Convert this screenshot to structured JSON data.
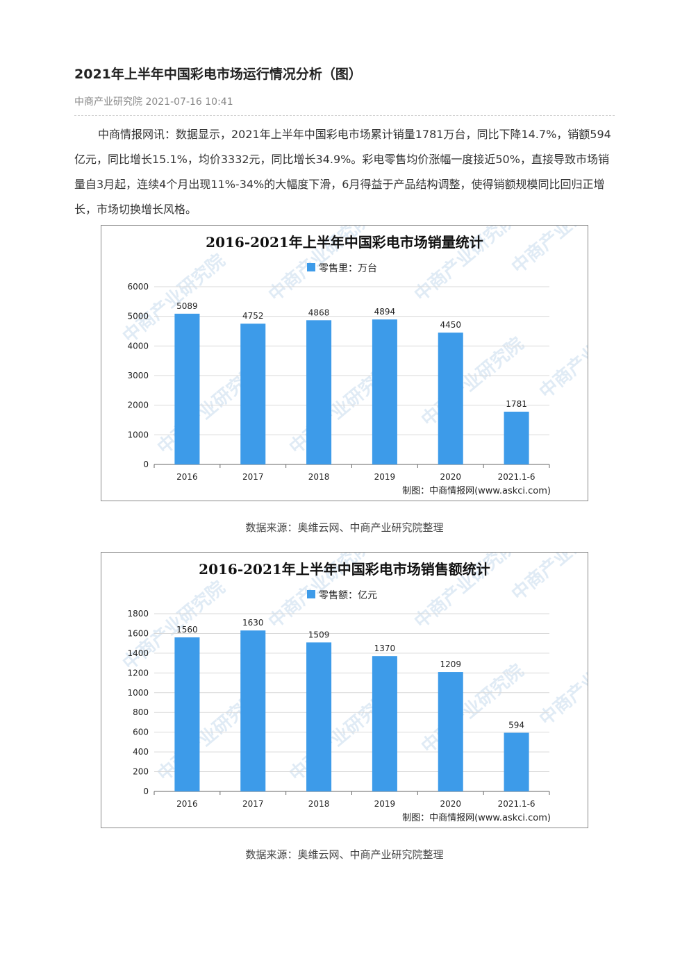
{
  "article": {
    "title": "2021年上半年中国彩电市场运行情况分析（图）",
    "meta": "中商产业研究院 2021-07-16 10:41",
    "paragraph": "中商情报网讯：数据显示，2021年上半年中国彩电市场累计销量1781万台，同比下降14.7%，销额594亿元，同比增长15.1%，均价3332元，同比增长34.9%。彩电零售均价涨幅一度接近50%，直接导致市场销量自3月起，连续4个月出现11%-34%的大幅度下滑，6月得益于产品结构调整，使得销额规模同比回归正增长，市场切换增长风格。"
  },
  "sources": [
    "数据来源：奥维云网、中商产业研究院整理",
    "数据来源：奥维云网、中商产业研究院整理"
  ],
  "colors": {
    "bar": "#3d9be9",
    "grid": "#d9d9d9"
  },
  "watermark": "中商产业研究院",
  "chart_data": [
    {
      "type": "bar",
      "title": "2016-2021年上半年中国彩电市场销量统计",
      "legend": "零售里：万台",
      "legend_position": "top-center",
      "categories": [
        "2016",
        "2017",
        "2018",
        "2019",
        "2020",
        "2021.1-6"
      ],
      "values": [
        5089,
        4752,
        4868,
        4894,
        4450,
        1781
      ],
      "data_labels": [
        "5089",
        "4752",
        "4868",
        "4894",
        "4450",
        "1781"
      ],
      "yticks": [
        0,
        1000,
        2000,
        3000,
        4000,
        5000,
        6000
      ],
      "ylim": [
        0,
        6000
      ],
      "grid": true,
      "credit": "制图：中商情报网(www.askci.com)"
    },
    {
      "type": "bar",
      "title": "2016-2021年上半年中国彩电市场销售额统计",
      "legend": "零售额：亿元",
      "legend_position": "top-center",
      "categories": [
        "2016",
        "2017",
        "2018",
        "2019",
        "2020",
        "2021.1-6"
      ],
      "values": [
        1560,
        1630,
        1509,
        1370,
        1209,
        594
      ],
      "data_labels": [
        "1560",
        "1630",
        "1509",
        "1370",
        "1209",
        "594"
      ],
      "yticks": [
        0,
        200,
        400,
        600,
        800,
        1000,
        1200,
        1400,
        1600,
        1800
      ],
      "ylim": [
        0,
        1800
      ],
      "grid": true,
      "credit": "制图：中商情报网(www.askci.com)"
    }
  ]
}
